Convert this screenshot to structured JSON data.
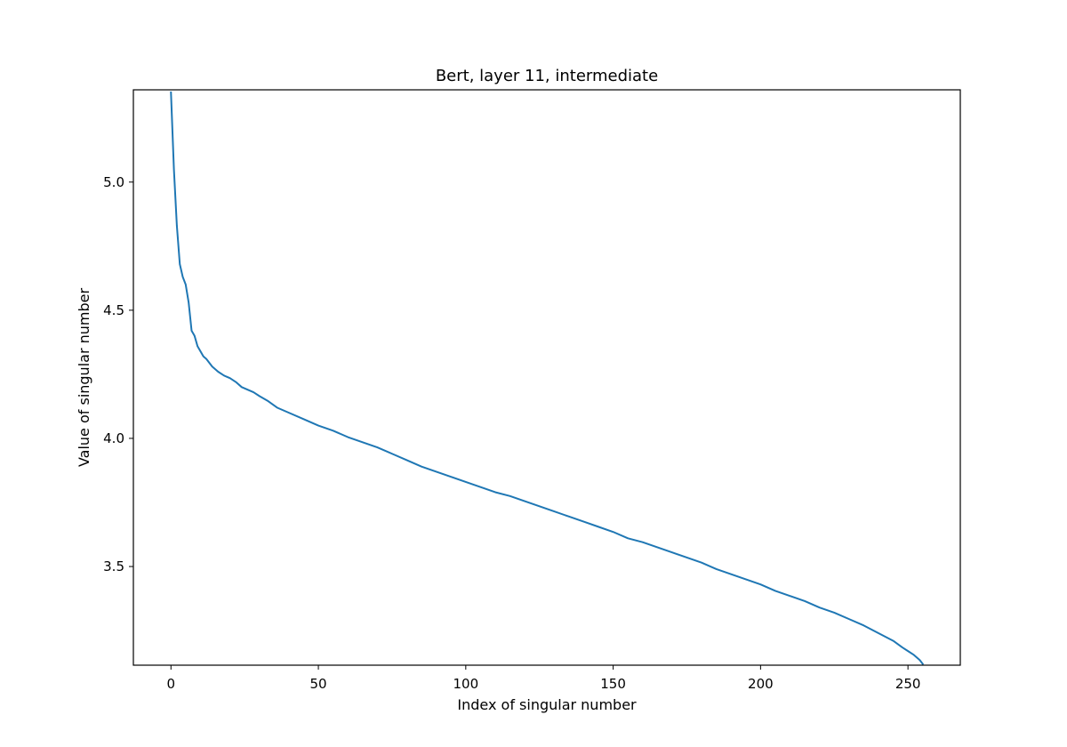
{
  "chart_data": {
    "type": "line",
    "title": "Bert, layer 11, intermediate",
    "xlabel": "Index of singular number",
    "ylabel": "Value of singular number",
    "xlim": [
      -12.75,
      267.75
    ],
    "ylim": [
      3.115,
      5.36
    ],
    "xticks": [
      0,
      50,
      100,
      150,
      200,
      250
    ],
    "yticks": [
      3.5,
      4.0,
      4.5,
      5.0
    ],
    "xtick_labels": [
      "0",
      "50",
      "100",
      "150",
      "200",
      "250"
    ],
    "ytick_labels": [
      "3.5",
      "4.0",
      "4.5",
      "5.0"
    ],
    "grid": false,
    "legend": "none",
    "series": [
      {
        "color": "#1f77b4",
        "x": [
          0,
          1,
          2,
          3,
          4,
          5,
          6,
          7,
          8,
          9,
          10,
          11,
          12,
          14,
          16,
          18,
          20,
          22,
          24,
          26,
          28,
          30,
          33,
          36,
          40,
          45,
          50,
          55,
          60,
          65,
          70,
          75,
          80,
          85,
          90,
          95,
          100,
          105,
          110,
          115,
          120,
          125,
          130,
          135,
          140,
          145,
          150,
          155,
          160,
          165,
          170,
          175,
          180,
          185,
          190,
          195,
          200,
          205,
          210,
          215,
          220,
          225,
          230,
          235,
          240,
          245,
          248,
          250,
          252,
          254,
          255
        ],
        "y": [
          5.35,
          5.05,
          4.83,
          4.68,
          4.63,
          4.6,
          4.53,
          4.42,
          4.4,
          4.36,
          4.34,
          4.32,
          4.31,
          4.28,
          4.26,
          4.245,
          4.235,
          4.22,
          4.2,
          4.19,
          4.18,
          4.165,
          4.145,
          4.12,
          4.1,
          4.075,
          4.05,
          4.03,
          4.005,
          3.985,
          3.965,
          3.94,
          3.915,
          3.89,
          3.87,
          3.85,
          3.83,
          3.81,
          3.79,
          3.775,
          3.755,
          3.735,
          3.715,
          3.695,
          3.675,
          3.655,
          3.635,
          3.61,
          3.595,
          3.575,
          3.555,
          3.535,
          3.515,
          3.49,
          3.47,
          3.45,
          3.43,
          3.405,
          3.385,
          3.365,
          3.34,
          3.32,
          3.295,
          3.27,
          3.24,
          3.21,
          3.185,
          3.17,
          3.155,
          3.135,
          3.12
        ]
      }
    ]
  }
}
